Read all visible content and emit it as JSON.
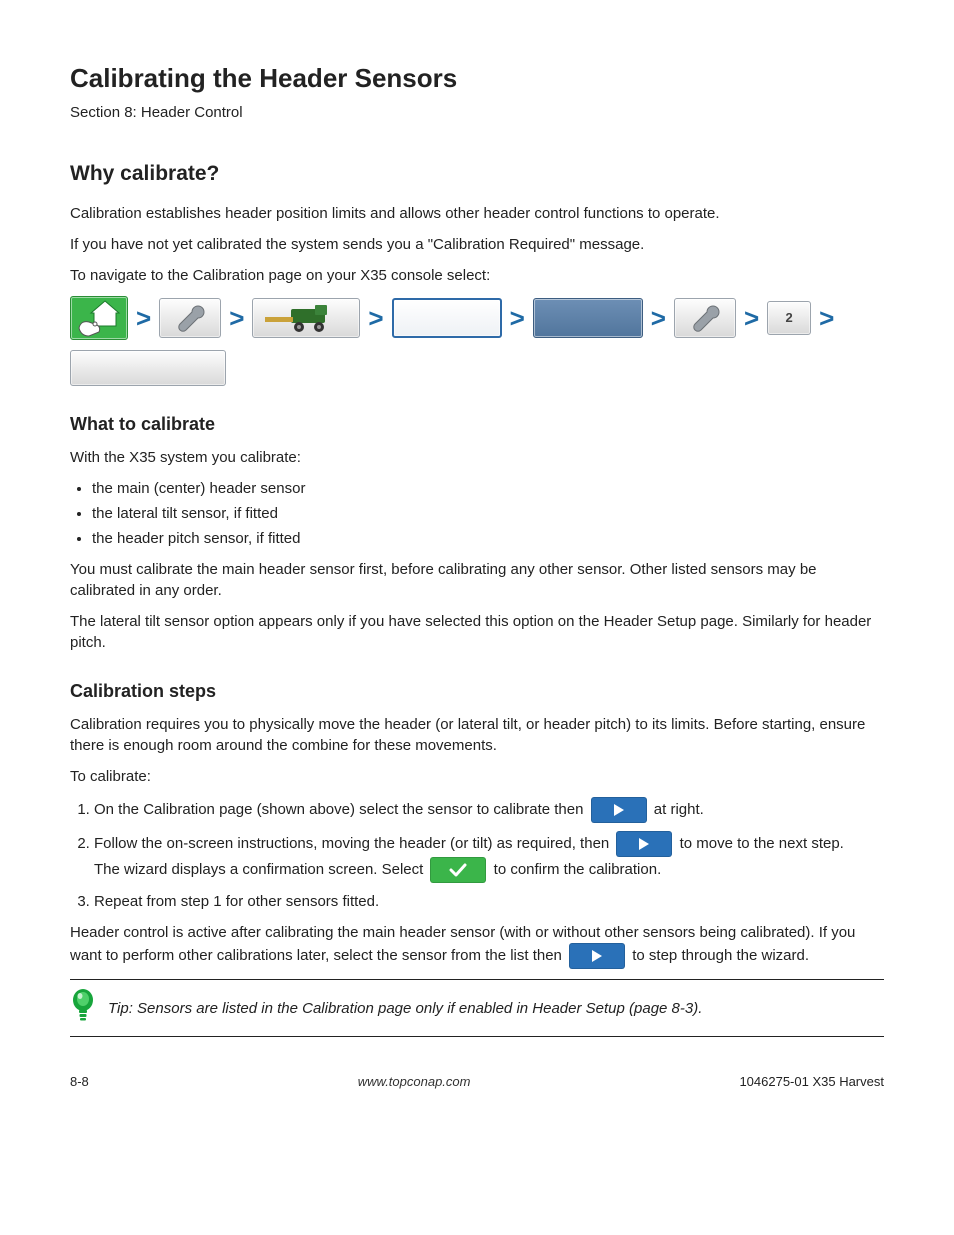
{
  "colors": {
    "accent_blue": "#2a71b8",
    "accent_green": "#3bb54a",
    "chevron": "#1f6aa5",
    "text": "#222222",
    "btn_gray_top": "#fdfdfd",
    "btn_gray_bottom": "#d9d9d9",
    "btn_blue_top": "#6d8fb5",
    "btn_blue_bottom": "#51759c"
  },
  "header": {
    "title": "Calibrating the Header Sensors",
    "section": "Section 8: Header Control"
  },
  "intro": {
    "why_head": "Why calibrate?",
    "why_body_1": "Calibration establishes header position limits and allows other header control functions to operate.",
    "why_body_2": "If you have not yet calibrated the system sends you a \"Calibration Required\" message.",
    "nav_head": "To navigate to the Calibration page on your X35 console select:"
  },
  "breadcrumb": {
    "items": [
      {
        "name": "home-button",
        "kind": "icon",
        "icon": "home-hand",
        "style": "green",
        "w": "w-home"
      },
      {
        "name": "settings-button",
        "kind": "icon",
        "icon": "wrench",
        "style": "gray",
        "w": "w-small"
      },
      {
        "name": "implement-button",
        "kind": "icon",
        "icon": "combine",
        "style": "gray",
        "w": "w-med"
      },
      {
        "name": "blank-outline",
        "kind": "blank",
        "style": "white-outline",
        "w": "w-wide"
      },
      {
        "name": "blank-blue",
        "kind": "blank",
        "style": "blue",
        "w": "w-wide"
      },
      {
        "name": "wrench-button-2",
        "kind": "icon",
        "icon": "wrench",
        "style": "gray",
        "w": "w-small"
      },
      {
        "name": "step-2-button",
        "kind": "text",
        "label": "2",
        "style": "gray",
        "w": "w-num"
      }
    ],
    "trailing": {
      "name": "blank-gray-long",
      "style": "gray",
      "w": "w-long"
    }
  },
  "what": {
    "head": "What to calibrate",
    "p1": "With the X35 system you calibrate:",
    "bullets": [
      "the main (center) header sensor",
      "the lateral tilt sensor, if fitted",
      "the header pitch sensor, if fitted"
    ],
    "p2": "You must calibrate the main header sensor first, before calibrating any other sensor. Other listed sensors may be calibrated in any order.",
    "p3": "The lateral tilt sensor option appears only if you have selected this option on the Header Setup page. Similarly for header pitch."
  },
  "steps": {
    "head": "Calibration steps",
    "pre1": "Calibration requires you to physically move the header (or lateral tilt, or header pitch) to its limits. Before starting, ensure there is enough room around the combine for these movements.",
    "pre2": "To calibrate:",
    "items": [
      {
        "n": 1,
        "text_before": "On the Calibration page (shown above) select the sensor to calibrate then ",
        "btn": "play-blue",
        "text_after": " at right.",
        "wrap": false
      },
      {
        "n": 2,
        "text_before": "Follow the on-screen instructions, moving the header (or tilt) as required, then ",
        "btn": "play-blue",
        "text_after": " to move to the next step.",
        "wrap": true,
        "extra": {
          "text_before": "The wizard displays a confirmation screen. Select ",
          "btn": "check-green",
          "text_after": " to confirm the calibration."
        }
      },
      {
        "n": 3,
        "text_before": "Repeat from step 1 for other sensors fitted.",
        "btn": null
      }
    ],
    "note_before": "Header control is active after calibrating the main header sensor (with or without other sensors being calibrated). If you want to perform other calibrations later, select the sensor from the list then ",
    "note_btn": "play-blue",
    "note_after": " to step through the wizard."
  },
  "tip": {
    "text": "Tip: Sensors are listed in the Calibration page only if enabled in Header Setup (page 8-3)."
  },
  "footer": {
    "left": "8-8",
    "mid": "www.topconap.com",
    "right": "1046275-01 X35 Harvest"
  }
}
